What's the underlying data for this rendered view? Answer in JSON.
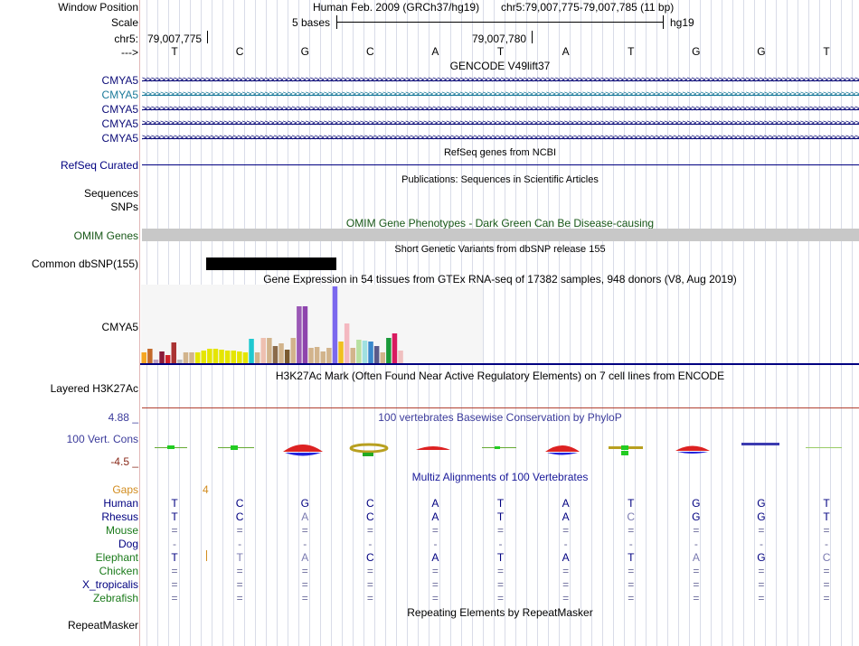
{
  "labels": {
    "window_position": "Window Position",
    "scale": "Scale",
    "chrom": "chr5:",
    "strand": "--->",
    "refseq": "RefSeq Curated",
    "sequences": "Sequences",
    "snps": "SNPs",
    "omim": "OMIM Genes",
    "common_snp": "Common dbSNP(155)",
    "gtex_gene": "CMYA5",
    "h3k27ac": "Layered H3K27Ac",
    "cons_max": "4.88 _",
    "cons_label": "100 Vert. Cons",
    "cons_min": "-4.5 _",
    "repeatmasker": "RepeatMasker"
  },
  "header": {
    "assembly": "Human Feb. 2009 (GRCh37/hg19)",
    "position": "chr5:79,007,775-79,007,785 (11 bp)",
    "scale_text": "5 bases",
    "db": "hg19",
    "pos_left": "79,007,775",
    "pos_mid": "79,007,780"
  },
  "bases": [
    "T",
    "C",
    "G",
    "C",
    "A",
    "T",
    "A",
    "T",
    "G",
    "G",
    "T"
  ],
  "tracks": {
    "gencode_title": "GENCODE V49lift37",
    "gencode_genes": [
      "CMYA5",
      "CMYA5",
      "CMYA5",
      "CMYA5",
      "CMYA5"
    ],
    "refseq_title": "RefSeq genes from NCBI",
    "pubs_title": "Publications: Sequences in Scientific Articles",
    "omim_title": "OMIM Gene Phenotypes - Dark Green Can Be Disease-causing",
    "snp_title": "Short Genetic Variants from dbSNP release 155",
    "gtex_title": "Gene Expression in 54 tissues from GTEx RNA-seq of 17382 samples, 948 donors (V8, Aug 2019)",
    "h3k_title": "H3K27Ac Mark (Often Found Near Active Regulatory Elements) on 7 cell lines from ENCODE",
    "phylop_title": "100 vertebrates Basewise Conservation by PhyloP",
    "multiz_title": "Multiz Alignments of 100 Vertebrates",
    "rmsk_title": "Repeating Elements by RepeatMasker"
  },
  "colors": {
    "navy": "#000080",
    "gencode_blue": "#0c0c78",
    "gencode_teal": "#1a7a9a",
    "omim_gray": "#c8c8c8",
    "gaps_orange": "#d28c1e",
    "cons_blue": "#3b3b9b",
    "cons_min_red": "#8a2a1a",
    "h3k_line": "#b04030"
  },
  "gtex": {
    "values": [
      12,
      16,
      4,
      13,
      9,
      23,
      4,
      12,
      12,
      12,
      14,
      16,
      16,
      15,
      14,
      14,
      13,
      12,
      27,
      12,
      28,
      28,
      19,
      22,
      15,
      28,
      63,
      63,
      17,
      18,
      13,
      17,
      85,
      24,
      44,
      17,
      26,
      25,
      24,
      19,
      12,
      28,
      33,
      14
    ],
    "colors": [
      "#f5a623",
      "#c46a2b",
      "#c0a0c0",
      "#8a1a3a",
      "#d0202a",
      "#a33",
      "#bbb",
      "#d2b48c",
      "#d2b48c",
      "#e5e500",
      "#e5e500",
      "#e5e500",
      "#e5e500",
      "#e5e500",
      "#e5e500",
      "#e5e500",
      "#e5e500",
      "#e5e500",
      "#1ec8d0",
      "#d2b48c",
      "#eec0b0",
      "#d2b48c",
      "#8b6b4a",
      "#d2b48c",
      "#7a5a30",
      "#d2b48c",
      "#9b59b6",
      "#8e44ad",
      "#d2b48c",
      "#d2b48c",
      "#d2b48c",
      "#d2b48c",
      "#7b68ee",
      "#f0c020",
      "#f4b8c0",
      "#d2b48c",
      "#b8e0a0",
      "#a0e0e0",
      "#3a88cc",
      "#5a5a8a",
      "#d2b48c",
      "#1a9a3a",
      "#d81b60",
      "#f0c0c0"
    ]
  },
  "multiz": {
    "gaps_label": "Gaps",
    "gaps_value": "4",
    "species": [
      {
        "name": "Human",
        "bases": [
          "T",
          "C",
          "G",
          "C",
          "A",
          "T",
          "A",
          "T",
          "G",
          "G",
          "T"
        ]
      },
      {
        "name": "Rhesus",
        "bases": [
          "T",
          "C",
          "A",
          "C",
          "A",
          "T",
          "A",
          "C",
          "G",
          "G",
          "T"
        ]
      },
      {
        "name": "Mouse",
        "bases": [
          "=",
          "=",
          "=",
          "=",
          "=",
          "=",
          "=",
          "=",
          "=",
          "=",
          "="
        ]
      },
      {
        "name": "Dog",
        "bases": [
          "-",
          "-",
          "-",
          "-",
          "-",
          "-",
          "-",
          "-",
          "-",
          "-",
          "-"
        ]
      },
      {
        "name": "Elephant",
        "bases": [
          "T",
          "T",
          "A",
          "C",
          "A",
          "T",
          "A",
          "T",
          "A",
          "G",
          "C"
        ]
      },
      {
        "name": "Chicken",
        "bases": [
          "=",
          "=",
          "=",
          "=",
          "=",
          "=",
          "=",
          "=",
          "=",
          "=",
          "="
        ]
      },
      {
        "name": "X_tropicalis",
        "bases": [
          "=",
          "=",
          "=",
          "=",
          "=",
          "=",
          "=",
          "=",
          "=",
          "=",
          "="
        ]
      },
      {
        "name": "Zebrafish",
        "bases": [
          "=",
          "=",
          "=",
          "=",
          "=",
          "=",
          "=",
          "=",
          "=",
          "=",
          "="
        ]
      }
    ]
  }
}
